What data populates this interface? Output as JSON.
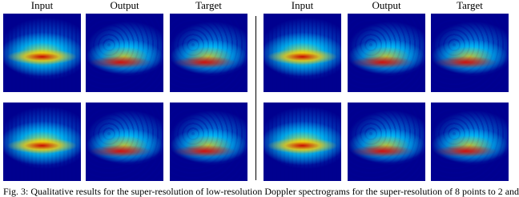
{
  "figure": {
    "groups": [
      {
        "headers": [
          "Input",
          "Output",
          "Target"
        ]
      },
      {
        "headers": [
          "Input",
          "Output",
          "Target"
        ]
      }
    ],
    "caption": "Fig. 3: Qualitative results for the super-resolution of low-resolution Doppler spectrograms for the super-resolution of 8 points to 2 and"
  }
}
